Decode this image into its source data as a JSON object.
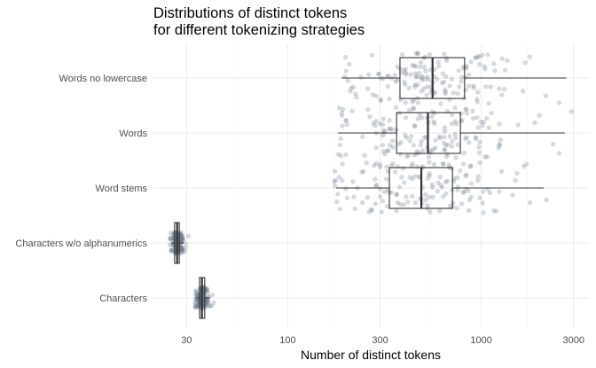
{
  "chart_data": {
    "type": "boxplot",
    "title_lines": [
      "Distributions of distinct tokens",
      "for different tokenizing strategies"
    ],
    "xlabel": "Number of distinct tokens",
    "ylabel": "",
    "x_scale": "log10",
    "xlim": [
      20,
      3600
    ],
    "x_ticks": [
      30,
      100,
      300,
      1000,
      3000
    ],
    "x_tick_labels": [
      "30",
      "100",
      "300",
      "1000",
      "3000"
    ],
    "categories": [
      "Words no lowercase",
      "Words",
      "Word stems",
      "Characters w/o alphanumerics",
      "Characters"
    ],
    "series": [
      {
        "category": "Words no lowercase",
        "whisker_low": 190,
        "q1": 380,
        "median": 560,
        "q3": 820,
        "whisker_high": 2750,
        "point_range": [
          190,
          2800
        ],
        "point_count": 150
      },
      {
        "category": "Words",
        "whisker_low": 182,
        "q1": 365,
        "median": 530,
        "q3": 780,
        "whisker_high": 2700,
        "point_range": [
          182,
          2950
        ],
        "point_count": 150
      },
      {
        "category": "Word stems",
        "whisker_low": 178,
        "q1": 335,
        "median": 490,
        "q3": 710,
        "whisker_high": 2100,
        "point_range": [
          172,
          2300
        ],
        "point_count": 150
      },
      {
        "category": "Characters w/o alphanumerics",
        "whisker_low": 25,
        "q1": 26,
        "median": 26.8,
        "q3": 27.5,
        "whisker_high": 29,
        "point_range": [
          24.5,
          33
        ],
        "point_count": 150
      },
      {
        "category": "Characters",
        "whisker_low": 34,
        "q1": 35,
        "median": 36,
        "q3": 37.2,
        "whisker_high": 39.5,
        "point_range": [
          33,
          45
        ],
        "point_count": 150
      }
    ],
    "grid": true,
    "legend": "none",
    "colors": {
      "box_line": "#333333",
      "points": "#6c7b8b",
      "grid": "#ebebeb"
    }
  }
}
